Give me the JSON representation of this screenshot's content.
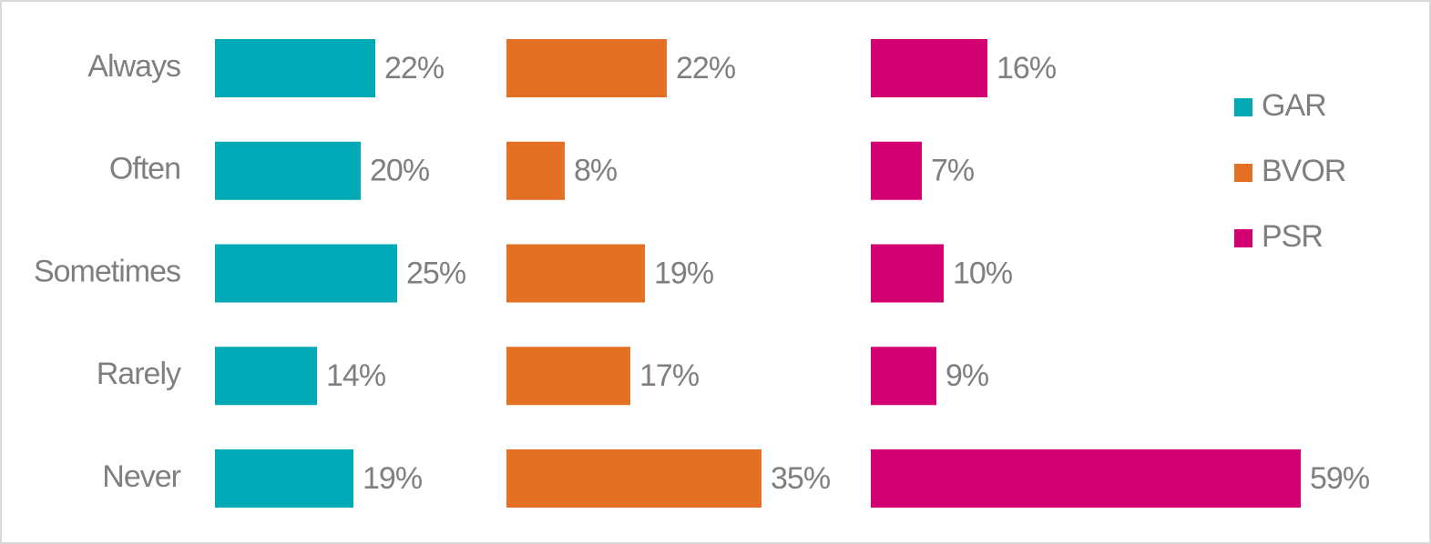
{
  "chart_data": {
    "type": "bar",
    "orientation": "horizontal",
    "legend": "right",
    "categories": [
      "Always",
      "Often",
      "Sometimes",
      "Rarely",
      "Never"
    ],
    "series": [
      {
        "name": "GAR",
        "color": "#00a9b5",
        "values": [
          22,
          20,
          25,
          14,
          19
        ],
        "value_labels": [
          "22%",
          "20%",
          "25%",
          "14%",
          "19%"
        ]
      },
      {
        "name": "BVOR",
        "color": "#e37125",
        "values": [
          22,
          8,
          19,
          17,
          35
        ],
        "value_labels": [
          "22%",
          "8%",
          "19%",
          "17%",
          "35%"
        ]
      },
      {
        "name": "PSR",
        "color": "#d20071",
        "values": [
          16,
          7,
          10,
          9,
          59
        ],
        "value_labels": [
          "16%",
          "7%",
          "10%",
          "9%",
          "59%"
        ]
      }
    ]
  }
}
